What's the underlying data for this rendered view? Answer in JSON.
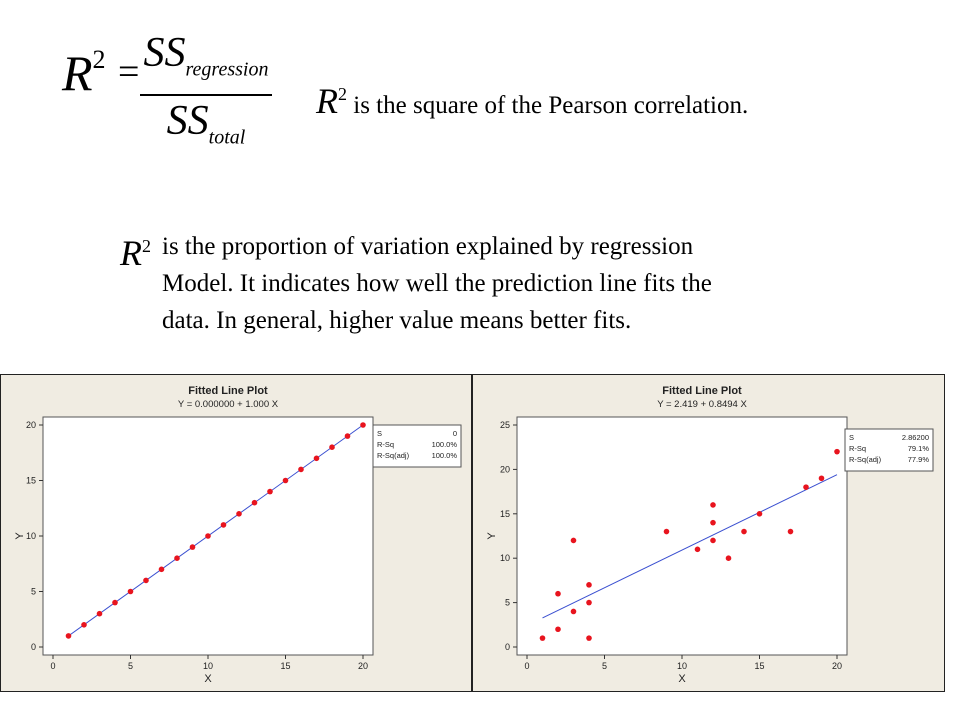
{
  "formula": {
    "lhs": "R",
    "lhs_exp": "2",
    "equals": "=",
    "numerator": "SS",
    "numerator_sub": "regression",
    "denominator": "SS",
    "denominator_sub": "total"
  },
  "statement1": {
    "symbol": "R",
    "exp": "2",
    "text": "is the square of the Pearson correlation."
  },
  "statement2": {
    "symbol": "R",
    "exp": "2",
    "line1": "is the proportion of variation explained by regression",
    "line2": "Model. It indicates how well the prediction line fits the",
    "line3": "data. In general, higher value means better fits."
  },
  "chart_data": [
    {
      "type": "scatter",
      "title": "Fitted Line Plot",
      "subtitle": "Y = 0.000000 + 1.000 X",
      "xlabel": "X",
      "ylabel": "Y",
      "xlim": [
        0,
        20
      ],
      "ylim": [
        0,
        20
      ],
      "xticks": [
        0,
        5,
        10,
        15,
        20
      ],
      "yticks": [
        0,
        5,
        10,
        15,
        20
      ],
      "points": [
        [
          1,
          1
        ],
        [
          2,
          2
        ],
        [
          3,
          3
        ],
        [
          4,
          4
        ],
        [
          5,
          5
        ],
        [
          6,
          6
        ],
        [
          7,
          7
        ],
        [
          8,
          8
        ],
        [
          9,
          9
        ],
        [
          10,
          10
        ],
        [
          11,
          11
        ],
        [
          12,
          12
        ],
        [
          13,
          13
        ],
        [
          14,
          14
        ],
        [
          15,
          15
        ],
        [
          16,
          16
        ],
        [
          17,
          17
        ],
        [
          18,
          18
        ],
        [
          19,
          19
        ],
        [
          20,
          20
        ]
      ],
      "fit": {
        "intercept": 0.0,
        "slope": 1.0,
        "x_range": [
          1,
          20
        ]
      },
      "stats": [
        {
          "label": "S",
          "value": "0"
        },
        {
          "label": "R-Sq",
          "value": "100.0%"
        },
        {
          "label": "R-Sq(adj)",
          "value": "100.0%"
        }
      ],
      "point_color": "#e8141e",
      "line_color": "#3a4fd0"
    },
    {
      "type": "scatter",
      "title": "Fitted Line Plot",
      "subtitle": "Y = 2.419 + 0.8494 X",
      "xlabel": "X",
      "ylabel": "Y",
      "xlim": [
        0,
        20
      ],
      "ylim": [
        0,
        25
      ],
      "xticks": [
        0,
        5,
        10,
        15,
        20
      ],
      "yticks": [
        0,
        5,
        10,
        15,
        20,
        25
      ],
      "points": [
        [
          1,
          1
        ],
        [
          2,
          2
        ],
        [
          2,
          6
        ],
        [
          3,
          4
        ],
        [
          3,
          12
        ],
        [
          4,
          1
        ],
        [
          4,
          5
        ],
        [
          4,
          7
        ],
        [
          9,
          13
        ],
        [
          11,
          11
        ],
        [
          12,
          12
        ],
        [
          12,
          14
        ],
        [
          12,
          16
        ],
        [
          13,
          10
        ],
        [
          14,
          13
        ],
        [
          15,
          15
        ],
        [
          17,
          13
        ],
        [
          18,
          18
        ],
        [
          19,
          19
        ],
        [
          20,
          22
        ]
      ],
      "fit": {
        "intercept": 2.419,
        "slope": 0.8494,
        "x_range": [
          1,
          20
        ]
      },
      "stats": [
        {
          "label": "S",
          "value": "2.86200"
        },
        {
          "label": "R-Sq",
          "value": "79.1%"
        },
        {
          "label": "R-Sq(adj)",
          "value": "77.9%"
        }
      ],
      "point_color": "#e8141e",
      "line_color": "#3a4fd0"
    }
  ]
}
